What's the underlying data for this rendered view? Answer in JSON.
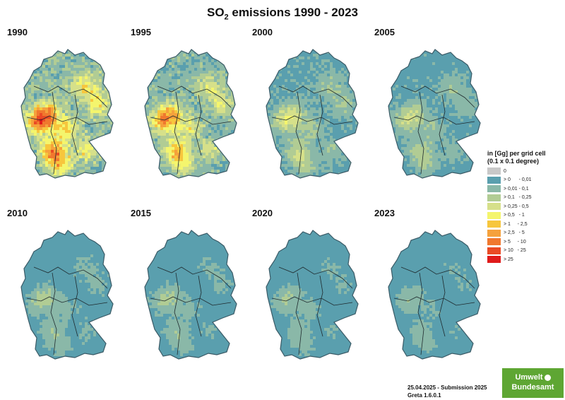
{
  "title": {
    "main": "SO",
    "sub": "2",
    "rest": " emissions 1990 - 2023"
  },
  "panels": [
    {
      "year": "1990",
      "intensity": 1.0
    },
    {
      "year": "1995",
      "intensity": 0.8
    },
    {
      "year": "2000",
      "intensity": 0.45
    },
    {
      "year": "2005",
      "intensity": 0.38
    },
    {
      "year": "2010",
      "intensity": 0.28
    },
    {
      "year": "2015",
      "intensity": 0.26
    },
    {
      "year": "2020",
      "intensity": 0.24
    },
    {
      "year": "2023",
      "intensity": 0.22
    }
  ],
  "legend": {
    "title": "in [Gg] per grid cell (0.1 x 0.1 degree)",
    "items": [
      {
        "label": "0",
        "color": "#c8c8c8"
      },
      {
        "label": "> 0      - 0,01",
        "color": "#5a9fae"
      },
      {
        "label": "> 0,01 - 0,1",
        "color": "#8ab8a8"
      },
      {
        "label": "> 0,1   - 0,25",
        "color": "#b1cc94"
      },
      {
        "label": "> 0,25 - 0,5",
        "color": "#d6e08a"
      },
      {
        "label": "> 0,5   - 1",
        "color": "#f4f56d"
      },
      {
        "label": "> 1     - 2,5",
        "color": "#f7c63d"
      },
      {
        "label": "> 2,5   - 5",
        "color": "#f5a13c"
      },
      {
        "label": "> 5     - 10",
        "color": "#f0782e"
      },
      {
        "label": "> 10   - 25",
        "color": "#ea4a24"
      },
      {
        "label": "> 25",
        "color": "#e01b1b"
      }
    ]
  },
  "footer": {
    "line1": "25.04.2025 - Submission 2025",
    "line2": "Greta 1.6.0.1"
  },
  "logo": {
    "line1": "Umwelt",
    "line2": "Bundesamt"
  }
}
